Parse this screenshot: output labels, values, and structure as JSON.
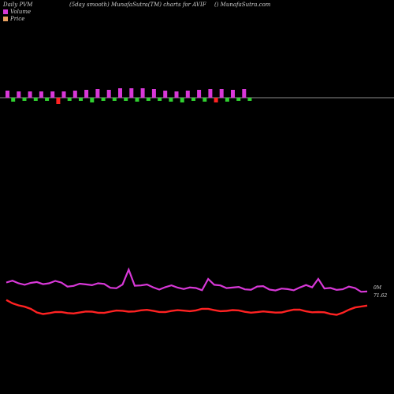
{
  "header": {
    "left": "Daily PVM",
    "center": "(5day smooth) MunafaSutra(TM) charts for AVIF",
    "right": "() MunafaSutra.com"
  },
  "legend": [
    {
      "label": "Volume",
      "color": "#d838d8"
    },
    {
      "label": "Price",
      "color": "#e8a060"
    }
  ],
  "colors": {
    "up": "#d838d8",
    "down": "#e0247a",
    "green": "#30d030",
    "red": "#ff2222",
    "pvm": "#d838d8"
  },
  "chart_data": {
    "type": "line",
    "volume_bars": [
      {
        "v": 9,
        "c": "up"
      },
      {
        "v": -5,
        "c": "green"
      },
      {
        "v": 8,
        "c": "up"
      },
      {
        "v": -4,
        "c": "green"
      },
      {
        "v": 8,
        "c": "up"
      },
      {
        "v": -4,
        "c": "green"
      },
      {
        "v": 8,
        "c": "up"
      },
      {
        "v": -4,
        "c": "green"
      },
      {
        "v": 8,
        "c": "up"
      },
      {
        "v": -8,
        "c": "red"
      },
      {
        "v": 8,
        "c": "up"
      },
      {
        "v": -4,
        "c": "green"
      },
      {
        "v": 9,
        "c": "up"
      },
      {
        "v": -4,
        "c": "green"
      },
      {
        "v": 10,
        "c": "up"
      },
      {
        "v": -6,
        "c": "green"
      },
      {
        "v": 11,
        "c": "up"
      },
      {
        "v": -4,
        "c": "green"
      },
      {
        "v": 10,
        "c": "up"
      },
      {
        "v": -4,
        "c": "green"
      },
      {
        "v": 12,
        "c": "up"
      },
      {
        "v": -4,
        "c": "green"
      },
      {
        "v": 12,
        "c": "up"
      },
      {
        "v": -5,
        "c": "green"
      },
      {
        "v": 12,
        "c": "up"
      },
      {
        "v": -4,
        "c": "green"
      },
      {
        "v": 11,
        "c": "up"
      },
      {
        "v": -4,
        "c": "green"
      },
      {
        "v": 9,
        "c": "up"
      },
      {
        "v": -5,
        "c": "green"
      },
      {
        "v": 8,
        "c": "up"
      },
      {
        "v": -6,
        "c": "green"
      },
      {
        "v": 9,
        "c": "up"
      },
      {
        "v": -4,
        "c": "green"
      },
      {
        "v": 10,
        "c": "up"
      },
      {
        "v": -5,
        "c": "green"
      },
      {
        "v": 11,
        "c": "up"
      },
      {
        "v": -6,
        "c": "red"
      },
      {
        "v": 11,
        "c": "up"
      },
      {
        "v": -5,
        "c": "green"
      },
      {
        "v": 10,
        "c": "up"
      },
      {
        "v": -4,
        "c": "green"
      },
      {
        "v": 11,
        "c": "up"
      },
      {
        "v": -4,
        "c": "green"
      }
    ],
    "pvm_line": [
      20,
      22,
      20,
      21,
      18,
      19,
      17,
      18,
      17,
      15,
      14,
      15,
      16,
      15,
      14,
      13,
      14,
      15,
      14,
      13,
      12
    ],
    "price_line": [
      72.4,
      69.9,
      70.0,
      70.1,
      70.4,
      70.2,
      70.6,
      70.3,
      70.0,
      70.5,
      69.6,
      71.5
    ],
    "last_volume_label": "0M",
    "last_price_label": "71.62"
  }
}
